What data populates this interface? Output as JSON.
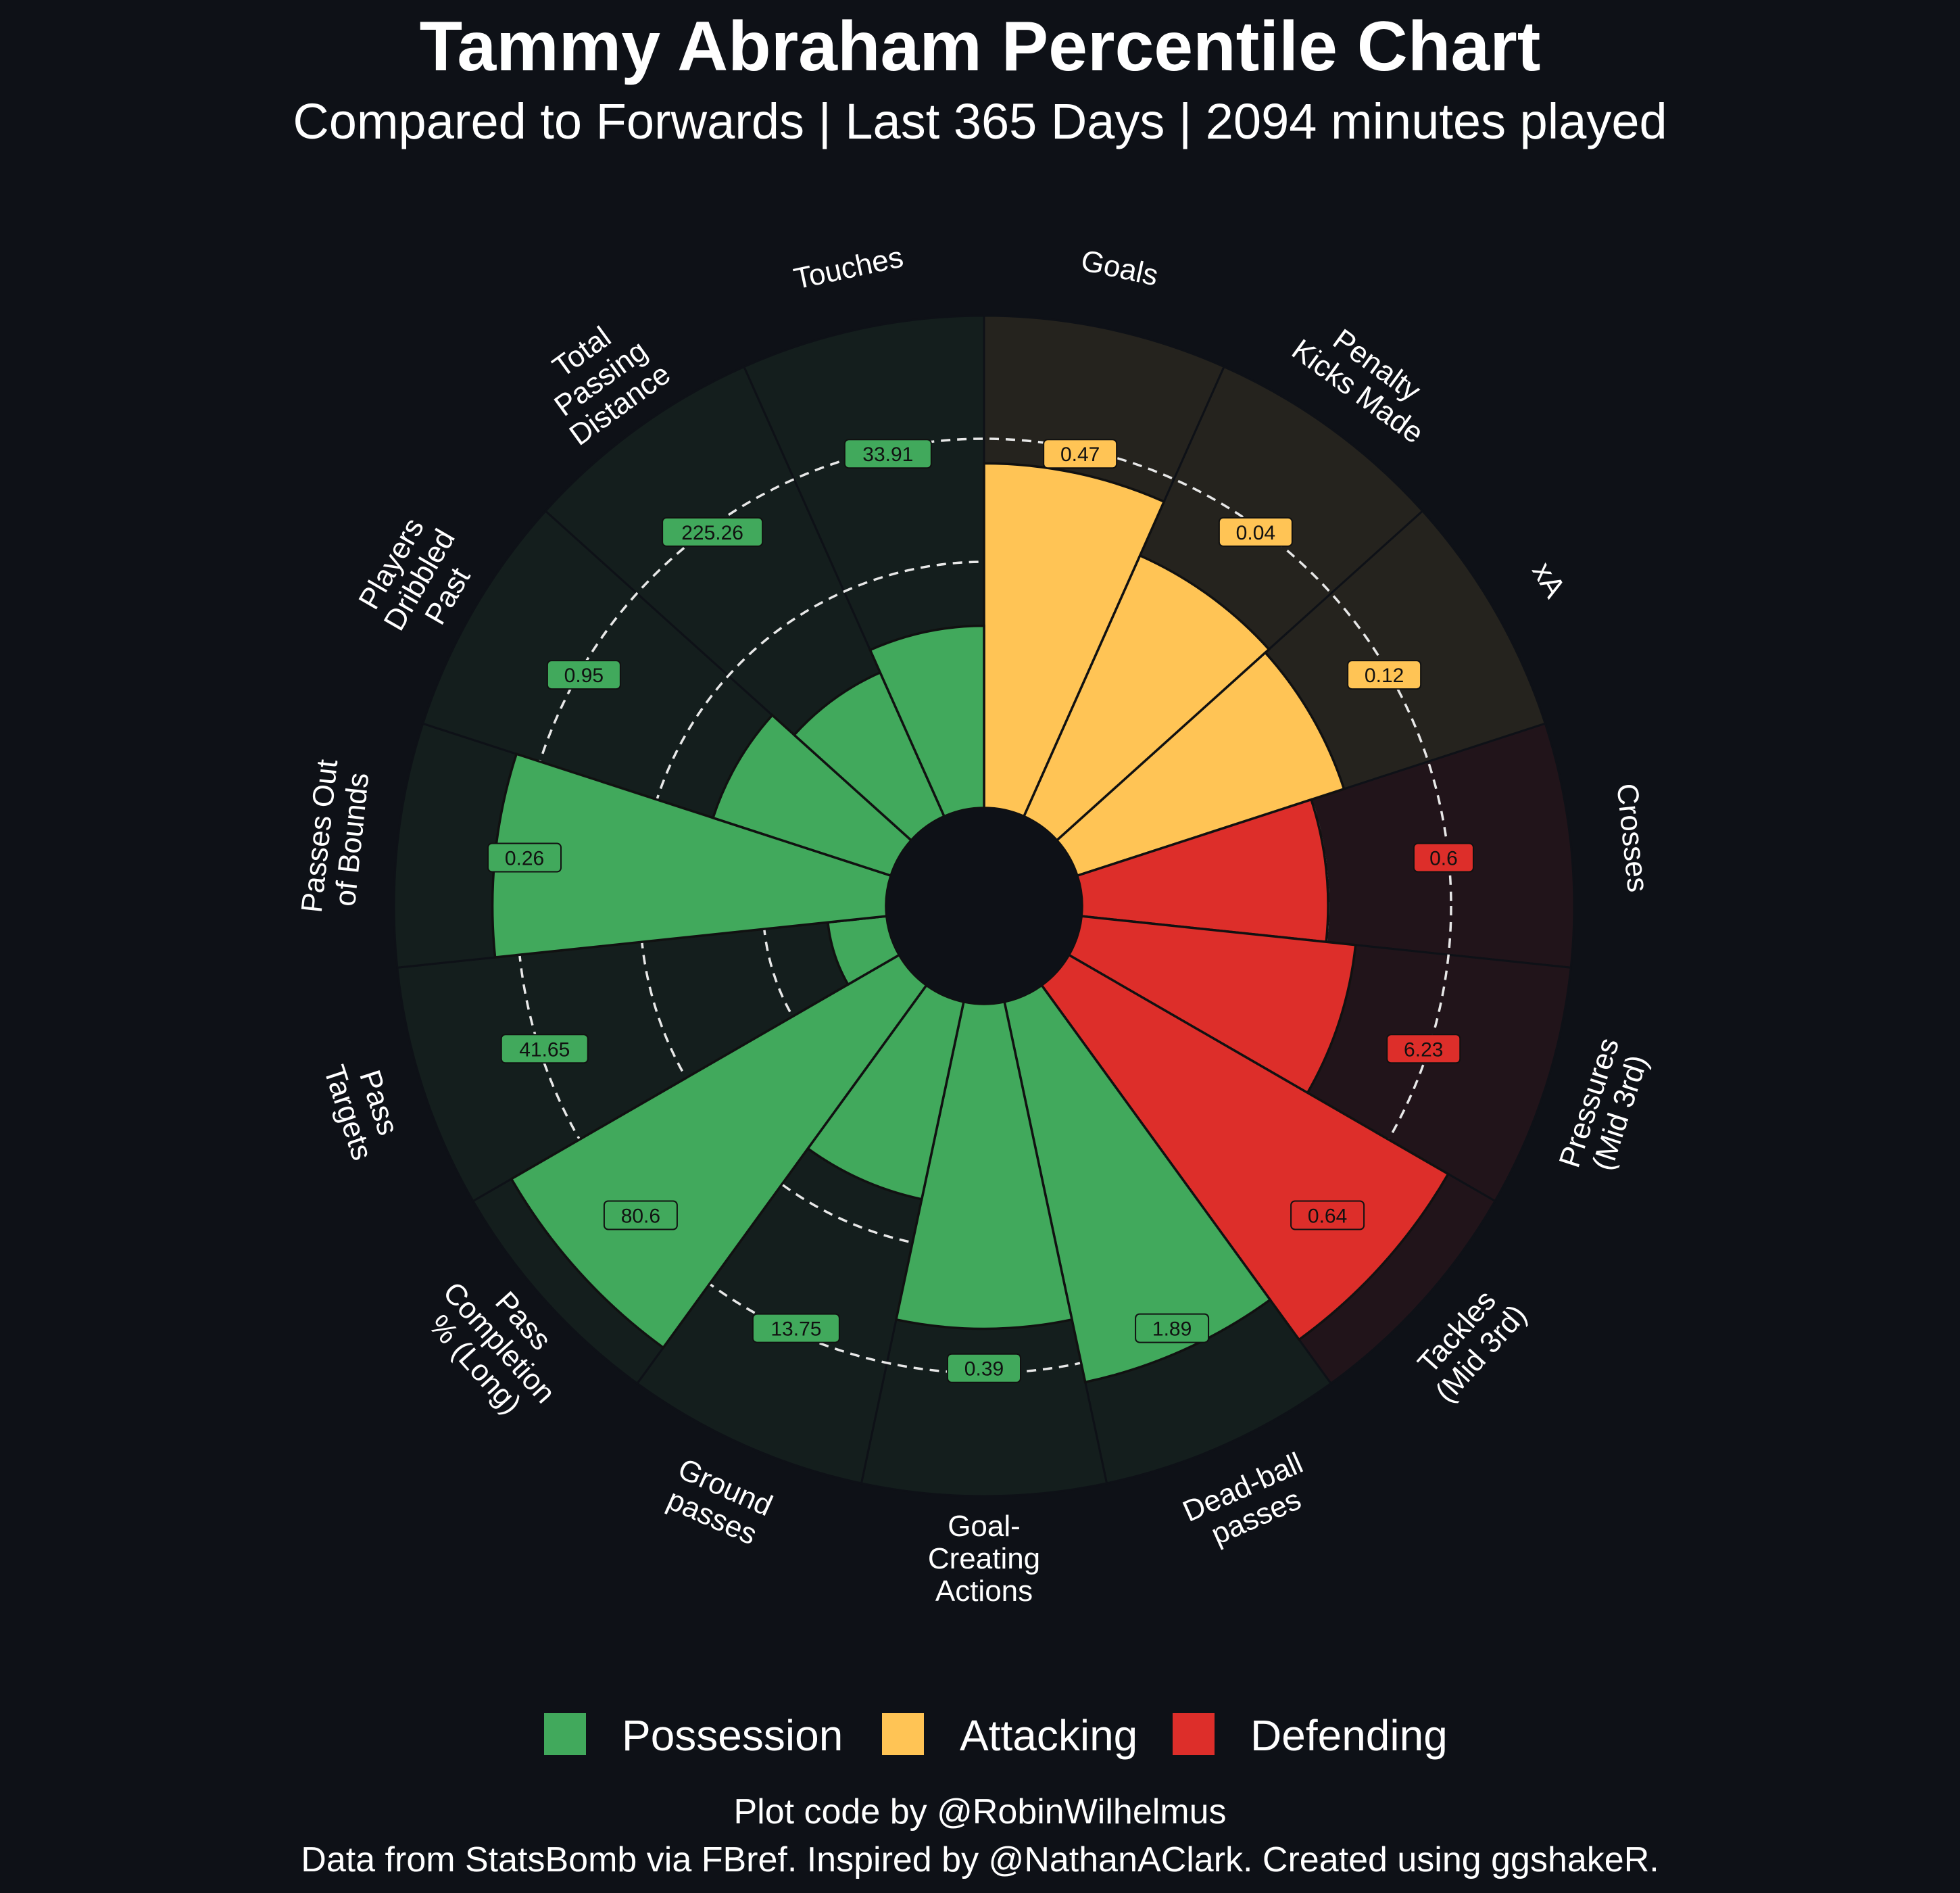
{
  "title": "Tammy Abraham Percentile Chart",
  "subtitle": "Compared to Forwards | Last 365 Days | 2094 minutes played",
  "caption_line1": "Plot code by @RobinWilhelmus",
  "caption_line2": "Data from StatsBomb via FBref. Inspired by @NathanAClark. Created using ggshakeR.",
  "colors": {
    "background": "#0e1117",
    "Possession": "#41a95c",
    "Attacking": "#ffc455",
    "Defending": "#dd2e2a",
    "Possession_bg": "#141e1d",
    "Attacking_bg": "#25231e",
    "Defending_bg": "#21141a"
  },
  "chart_data": {
    "type": "polar-bar",
    "rlim": [
      0,
      100
    ],
    "gridlines": [
      25,
      50,
      75
    ],
    "legend": [
      "Possession",
      "Attacking",
      "Defending"
    ],
    "legend_position": "bottom",
    "categories": [
      {
        "label": "Goals",
        "group": "Attacking",
        "value": "0.47",
        "percentile": 70
      },
      {
        "label": "Penalty\nKicks Made",
        "group": "Attacking",
        "value": "0.04",
        "percentile": 58
      },
      {
        "label": "xA",
        "group": "Attacking",
        "value": "0.12",
        "percentile": 57
      },
      {
        "label": "Crosses",
        "group": "Defending",
        "value": "0.6",
        "percentile": 50
      },
      {
        "label": "Pressures\n(Mid 3rd)",
        "group": "Defending",
        "value": "6.23",
        "percentile": 56
      },
      {
        "label": "Tackles\n(Mid 3rd)",
        "group": "Defending",
        "value": "0.64",
        "percentile": 89
      },
      {
        "label": "Dead-ball\npasses",
        "group": "Possession",
        "value": "1.89",
        "percentile": 79
      },
      {
        "label": "Goal-\nCreating\nActions",
        "group": "Possession",
        "value": "0.39",
        "percentile": 66
      },
      {
        "label": "Ground\npasses",
        "group": "Possession",
        "value": "13.75",
        "percentile": 41
      },
      {
        "label": "Pass\nCompletion\n% (Long)",
        "group": "Possession",
        "value": "80.6",
        "percentile": 91
      },
      {
        "label": "Pass\nTargets",
        "group": "Possession",
        "value": "41.65",
        "percentile": 12
      },
      {
        "label": "Passes Out\nof Bounds",
        "group": "Possession",
        "value": "0.26",
        "percentile": 80
      },
      {
        "label": "Players\nDribbled\nPast",
        "group": "Possession",
        "value": "0.95",
        "percentile": 38
      },
      {
        "label": "Total\nPassing\nDistance",
        "group": "Possession",
        "value": "225.26",
        "percentile": 32
      },
      {
        "label": "Touches",
        "group": "Possession",
        "value": "33.91",
        "percentile": 37
      }
    ]
  }
}
